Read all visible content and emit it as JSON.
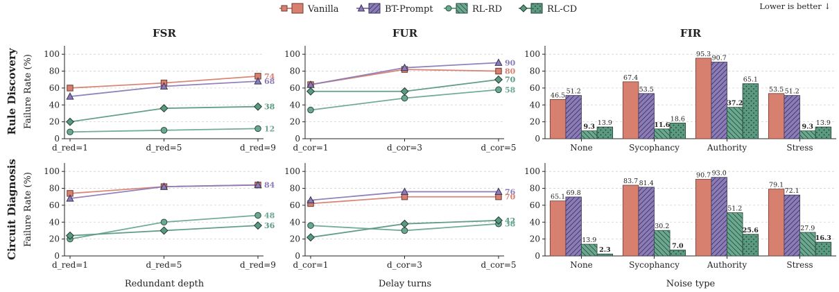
{
  "legend": {
    "items": [
      "Vanilla",
      "BT-Prompt",
      "RL-RD",
      "RL-CD"
    ],
    "note": "Lower is better ↓"
  },
  "rows": [
    "Rule Discovery",
    "Circuit Diagnosis"
  ],
  "colors": {
    "Vanilla": "#d8806f",
    "BT-Prompt": "#8b7bb8",
    "RL-RD": "#6aa890",
    "RL-CD": "#5b9a80",
    "grid": "#d0d0d0"
  },
  "chart_data": [
    {
      "type": "line",
      "panel": "FSR-Rule Discovery",
      "title": "FSR",
      "row_label": "Rule Discovery",
      "ylabel": "Failure Rate (%)",
      "xlabel": "",
      "categories": [
        "d_red=1",
        "d_red=5",
        "d_red=9"
      ],
      "ylim": [
        0,
        110
      ],
      "yticks": [
        "0",
        "20",
        "40",
        "60",
        "80",
        "100"
      ],
      "series": [
        {
          "name": "Vanilla",
          "values": [
            60,
            66,
            74
          ]
        },
        {
          "name": "BT-Prompt",
          "values": [
            50,
            62,
            68
          ]
        },
        {
          "name": "RL-RD",
          "values": [
            8,
            10,
            12
          ]
        },
        {
          "name": "RL-CD",
          "values": [
            20,
            36,
            38
          ]
        }
      ],
      "end_labels": [
        {
          "series": "Vanilla",
          "text": "74"
        },
        {
          "series": "BT-Prompt",
          "text": "68"
        },
        {
          "series": "RL-CD",
          "text": "38"
        },
        {
          "series": "RL-RD",
          "text": "12"
        }
      ],
      "grid": "horizontal dashed"
    },
    {
      "type": "line",
      "panel": "FUR-Rule Discovery",
      "title": "FUR",
      "xlabel": "",
      "categories": [
        "d_cor=1",
        "d_cor=3",
        "d_cor=5"
      ],
      "ylim": [
        0,
        110
      ],
      "yticks": [
        "0",
        "20",
        "40",
        "60",
        "80",
        "100"
      ],
      "series": [
        {
          "name": "Vanilla",
          "values": [
            64,
            82,
            80
          ]
        },
        {
          "name": "BT-Prompt",
          "values": [
            64,
            84,
            90
          ]
        },
        {
          "name": "RL-RD",
          "values": [
            34,
            48,
            58
          ]
        },
        {
          "name": "RL-CD",
          "values": [
            56,
            56,
            70
          ]
        }
      ],
      "end_labels": [
        {
          "series": "BT-Prompt",
          "text": "90"
        },
        {
          "series": "Vanilla",
          "text": "80"
        },
        {
          "series": "RL-CD",
          "text": "70"
        },
        {
          "series": "RL-RD",
          "text": "58"
        }
      ],
      "grid": "horizontal dashed"
    },
    {
      "type": "bar",
      "panel": "FIR-Rule Discovery",
      "title": "FIR",
      "xlabel": "",
      "categories": [
        "None",
        "Sycophancy",
        "Authority",
        "Stress"
      ],
      "ylim": [
        0,
        110
      ],
      "yticks": [
        "0",
        "20",
        "40",
        "60",
        "80",
        "100"
      ],
      "series": [
        {
          "name": "Vanilla",
          "values": [
            46.5,
            67.4,
            95.3,
            53.5
          ]
        },
        {
          "name": "BT-Prompt",
          "values": [
            51.2,
            53.5,
            90.7,
            51.2
          ]
        },
        {
          "name": "RL-RD",
          "values": [
            9.3,
            11.6,
            37.2,
            9.3
          ]
        },
        {
          "name": "RL-CD",
          "values": [
            13.9,
            18.6,
            65.1,
            13.9
          ]
        }
      ],
      "bold_labels": [
        {
          "series": "RL-RD",
          "category": "None",
          "text": "9.3"
        },
        {
          "series": "RL-RD",
          "category": "Sycophancy",
          "text": "11.6"
        },
        {
          "series": "RL-RD",
          "category": "Authority",
          "text": "37.2"
        },
        {
          "series": "RL-RD",
          "category": "Stress",
          "text": "9.3"
        }
      ],
      "grid": "horizontal dashed"
    },
    {
      "type": "line",
      "panel": "FSR-Circuit Diagnosis",
      "row_label": "Circuit Diagnosis",
      "ylabel": "Failure Rate (%)",
      "xlabel": "Redundant depth",
      "categories": [
        "d_red=1",
        "d_red=5",
        "d_red=9"
      ],
      "ylim": [
        0,
        110
      ],
      "yticks": [
        "0",
        "20",
        "40",
        "60",
        "80",
        "100"
      ],
      "series": [
        {
          "name": "Vanilla",
          "values": [
            74,
            82,
            84
          ]
        },
        {
          "name": "BT-Prompt",
          "values": [
            68,
            82,
            84
          ]
        },
        {
          "name": "RL-RD",
          "values": [
            20,
            40,
            48
          ]
        },
        {
          "name": "RL-CD",
          "values": [
            24,
            30,
            36
          ]
        }
      ],
      "end_labels": [
        {
          "series": "BT-Prompt",
          "text": "84"
        },
        {
          "series": "RL-RD",
          "text": "48"
        },
        {
          "series": "RL-CD",
          "text": "36"
        }
      ],
      "grid": "horizontal dashed"
    },
    {
      "type": "line",
      "panel": "FUR-Circuit Diagnosis",
      "xlabel": "Delay turns",
      "categories": [
        "d_cor=1",
        "d_cor=3",
        "d_cor=5"
      ],
      "ylim": [
        0,
        110
      ],
      "yticks": [
        "0",
        "20",
        "40",
        "60",
        "80",
        "100"
      ],
      "series": [
        {
          "name": "Vanilla",
          "values": [
            62,
            70,
            70
          ]
        },
        {
          "name": "BT-Prompt",
          "values": [
            66,
            76,
            76
          ]
        },
        {
          "name": "RL-RD",
          "values": [
            36,
            30,
            38
          ]
        },
        {
          "name": "RL-CD",
          "values": [
            22,
            38,
            42
          ]
        }
      ],
      "end_labels": [
        {
          "series": "BT-Prompt",
          "text": "76"
        },
        {
          "series": "Vanilla",
          "text": "70"
        },
        {
          "series": "RL-CD",
          "text": "42"
        },
        {
          "series": "RL-RD",
          "text": "38"
        }
      ],
      "grid": "horizontal dashed"
    },
    {
      "type": "bar",
      "panel": "FIR-Circuit Diagnosis",
      "xlabel": "Noise type",
      "categories": [
        "None",
        "Sycophancy",
        "Authority",
        "Stress"
      ],
      "ylim": [
        0,
        110
      ],
      "yticks": [
        "0",
        "20",
        "40",
        "60",
        "80",
        "100"
      ],
      "series": [
        {
          "name": "Vanilla",
          "values": [
            65.1,
            83.7,
            90.7,
            79.1
          ]
        },
        {
          "name": "BT-Prompt",
          "values": [
            69.8,
            81.4,
            93.0,
            72.1
          ]
        },
        {
          "name": "RL-RD",
          "values": [
            13.9,
            30.2,
            51.2,
            27.9
          ]
        },
        {
          "name": "RL-CD",
          "values": [
            2.3,
            7.0,
            25.6,
            16.3
          ]
        }
      ],
      "bold_labels": [
        {
          "series": "RL-CD",
          "category": "None",
          "text": "2.3"
        },
        {
          "series": "RL-CD",
          "category": "Sycophancy",
          "text": "7.0"
        },
        {
          "series": "RL-CD",
          "category": "Authority",
          "text": "25.6"
        },
        {
          "series": "RL-CD",
          "category": "Stress",
          "text": "16.3"
        }
      ],
      "grid": "horizontal dashed"
    }
  ]
}
